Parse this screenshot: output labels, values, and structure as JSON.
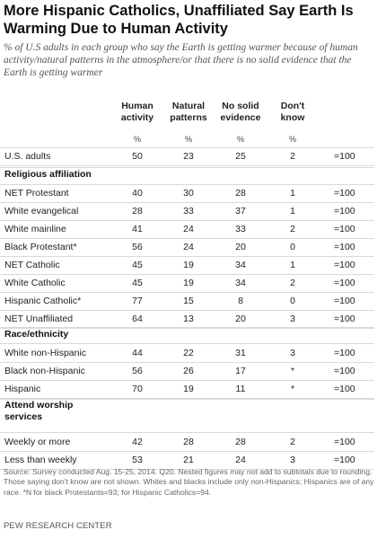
{
  "title": "More Hispanic Catholics, Unaffiliated Say Earth Is Warming Due to Human Activity",
  "subtitle": "% of U.S adults in each group who say the Earth is getting warmer because of human activity/natural patterns in the atmosphere/or that there is no solid evidence that the Earth is getting warmer",
  "columns": [
    "Human activity",
    "Natural patterns",
    "No solid evidence",
    "Don't know"
  ],
  "unit_label": "%",
  "footnote": "Source: Survey conducted Aug. 15-25, 2014. Q20. Nested figures may not add to subtotals due to rounding. Those saying don't know are not shown. Whites and blacks include only non-Hispanics; Hispanics are of any race. *N for black Protestants=93; for Hispanic Catholics=94.",
  "brand": "PEW RESEARCH CENTER",
  "chart_data": {
    "type": "table",
    "columns": [
      "Human activity",
      "Natural patterns",
      "No solid evidence",
      "Don't know"
    ],
    "sections": [
      {
        "heading": "",
        "rows": [
          {
            "label": "U.S. adults",
            "values": [
              "50",
              "23",
              "25",
              "2"
            ],
            "n": "=100"
          }
        ]
      },
      {
        "heading": "Religious affiliation",
        "rows": [
          {
            "label": "NET Protestant",
            "values": [
              "40",
              "30",
              "28",
              "1"
            ],
            "n": "=100"
          },
          {
            "label": "White evangelical",
            "values": [
              "28",
              "33",
              "37",
              "1"
            ],
            "n": "=100"
          },
          {
            "label": "White mainline",
            "values": [
              "41",
              "24",
              "33",
              "2"
            ],
            "n": "=100"
          },
          {
            "label": "Black Protestant*",
            "values": [
              "56",
              "24",
              "20",
              "0"
            ],
            "n": "=100"
          },
          {
            "label": "NET Catholic",
            "values": [
              "45",
              "19",
              "34",
              "1"
            ],
            "n": "=100"
          },
          {
            "label": "White Catholic",
            "values": [
              "45",
              "19",
              "34",
              "2"
            ],
            "n": "=100"
          },
          {
            "label": "Hispanic Catholic*",
            "values": [
              "77",
              "15",
              "8",
              "0"
            ],
            "n": "=100"
          },
          {
            "label": "NET Unaffiliated",
            "values": [
              "64",
              "13",
              "20",
              "3"
            ],
            "n": "=100"
          }
        ]
      },
      {
        "heading": "Race/ethnicity",
        "rows": [
          {
            "label": "White non-Hispanic",
            "values": [
              "44",
              "22",
              "31",
              "3"
            ],
            "n": "=100"
          },
          {
            "label": "Black non-Hispanic",
            "values": [
              "56",
              "26",
              "17",
              "*"
            ],
            "n": "=100"
          },
          {
            "label": "Hispanic",
            "values": [
              "70",
              "19",
              "11",
              "*"
            ],
            "n": "=100"
          }
        ]
      },
      {
        "heading": "Attend worship services",
        "rows": [
          {
            "label": "Weekly or more",
            "values": [
              "42",
              "28",
              "28",
              "2"
            ],
            "n": "=100"
          },
          {
            "label": "Less than weekly",
            "values": [
              "53",
              "21",
              "24",
              "3"
            ],
            "n": "=100"
          }
        ]
      }
    ]
  }
}
